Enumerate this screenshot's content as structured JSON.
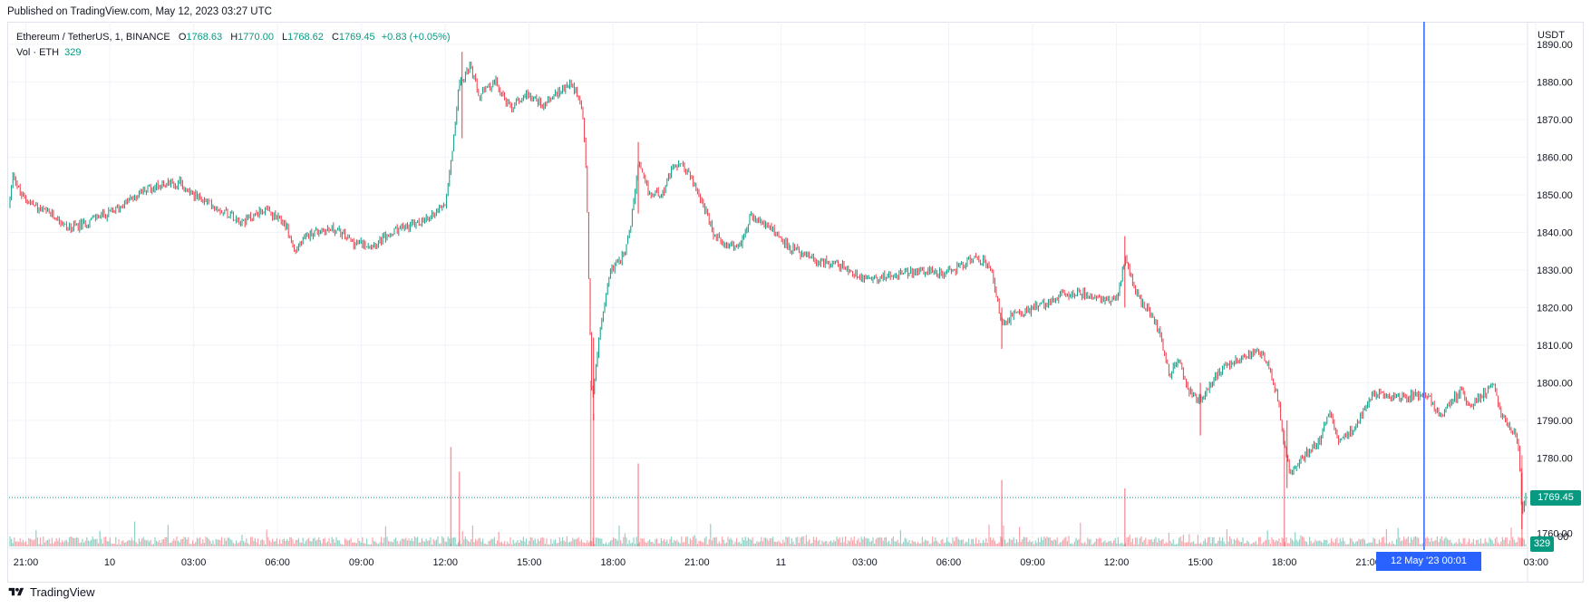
{
  "header": {
    "published": "Published on TradingView.com, May 12, 2023 03:27 UTC"
  },
  "legend": {
    "symbol": "Ethereum / TetherUS, 1, BINANCE",
    "open_key": "O",
    "open": "1768.63",
    "high_key": "H",
    "high": "1770.00",
    "low_key": "L",
    "low": "1768.62",
    "close_key": "C",
    "close": "1769.45",
    "change": "+0.83 (+0.05%)"
  },
  "volume_legend": {
    "label": "Vol · ETH",
    "value": "329"
  },
  "price_axis": {
    "currency": "USDT",
    "current_price_label": "1769.45",
    "volume_label": "329",
    "partial_bottom_label": "00"
  },
  "crosshair": {
    "date_label": "12 May '23   00:01"
  },
  "footer": {
    "brand": "TradingView"
  },
  "colors": {
    "up": "#089981",
    "down": "#f23645",
    "crosshair": "#2962ff",
    "grid": "#f0f3fa"
  },
  "chart_data": {
    "type": "candlestick",
    "title": "Ethereum / TetherUS, 1, BINANCE",
    "ylabel": "USDT",
    "ylim": [
      1756,
      1896
    ],
    "y_ticks": [
      1760,
      1770,
      1780,
      1790,
      1800,
      1810,
      1820,
      1830,
      1840,
      1850,
      1860,
      1870,
      1880,
      1890
    ],
    "x_ticks": [
      "21:00",
      "10",
      "03:00",
      "06:00",
      "09:00",
      "12:00",
      "15:00",
      "18:00",
      "21:00",
      "11",
      "03:00",
      "06:00",
      "09:00",
      "12:00",
      "15:00",
      "18:00",
      "21:00",
      "03:00"
    ],
    "x_range_hours": [
      -2.6,
      51.7
    ],
    "x_tick_hours": [
      -2,
      1,
      4,
      7,
      10,
      13,
      16,
      19,
      22,
      25,
      28,
      31,
      34,
      37,
      40,
      43,
      46,
      52
    ],
    "price_path": [
      [
        -2.6,
        1847
      ],
      [
        -2.45,
        1856
      ],
      [
        -2.2,
        1850
      ],
      [
        -1.5,
        1846
      ],
      [
        -0.9,
        1844
      ],
      [
        -0.5,
        1841
      ],
      [
        0.0,
        1842
      ],
      [
        0.5,
        1844
      ],
      [
        1.0,
        1845
      ],
      [
        1.6,
        1848
      ],
      [
        2.2,
        1851
      ],
      [
        2.9,
        1853
      ],
      [
        3.5,
        1853
      ],
      [
        4.2,
        1849
      ],
      [
        5.0,
        1846
      ],
      [
        5.8,
        1843
      ],
      [
        6.5,
        1846
      ],
      [
        7.3,
        1842
      ],
      [
        7.6,
        1835
      ],
      [
        8.2,
        1840
      ],
      [
        9.0,
        1841
      ],
      [
        9.8,
        1837
      ],
      [
        10.5,
        1837
      ],
      [
        11.4,
        1841
      ],
      [
        12.3,
        1843
      ],
      [
        13.0,
        1848
      ],
      [
        13.25,
        1862
      ],
      [
        13.5,
        1880
      ],
      [
        13.9,
        1884
      ],
      [
        14.2,
        1876
      ],
      [
        14.8,
        1880
      ],
      [
        15.3,
        1873
      ],
      [
        15.9,
        1877
      ],
      [
        16.5,
        1874
      ],
      [
        17.0,
        1877
      ],
      [
        17.5,
        1880
      ],
      [
        17.9,
        1873
      ],
      [
        18.05,
        1855
      ],
      [
        18.15,
        1820
      ],
      [
        18.25,
        1795
      ],
      [
        18.5,
        1812
      ],
      [
        18.9,
        1830
      ],
      [
        19.3,
        1833
      ],
      [
        19.6,
        1840
      ],
      [
        19.9,
        1858
      ],
      [
        20.3,
        1850
      ],
      [
        20.8,
        1851
      ],
      [
        21.2,
        1858
      ],
      [
        21.6,
        1857
      ],
      [
        22.2,
        1848
      ],
      [
        22.6,
        1839
      ],
      [
        23.0,
        1837
      ],
      [
        23.5,
        1836
      ],
      [
        23.9,
        1844
      ],
      [
        24.4,
        1842
      ],
      [
        24.8,
        1840
      ],
      [
        25.3,
        1836
      ],
      [
        25.8,
        1834
      ],
      [
        26.3,
        1832
      ],
      [
        26.8,
        1832
      ],
      [
        27.2,
        1831
      ],
      [
        27.6,
        1829
      ],
      [
        28.0,
        1828
      ],
      [
        28.5,
        1828
      ],
      [
        29.0,
        1829
      ],
      [
        29.5,
        1829
      ],
      [
        30.0,
        1830
      ],
      [
        30.6,
        1829
      ],
      [
        31.2,
        1830
      ],
      [
        31.8,
        1833
      ],
      [
        32.3,
        1832
      ],
      [
        32.6,
        1828
      ],
      [
        32.9,
        1815
      ],
      [
        33.3,
        1818
      ],
      [
        33.8,
        1819
      ],
      [
        34.4,
        1821
      ],
      [
        35.0,
        1823
      ],
      [
        35.6,
        1824
      ],
      [
        36.2,
        1823
      ],
      [
        36.6,
        1822
      ],
      [
        37.0,
        1822
      ],
      [
        37.3,
        1833
      ],
      [
        37.6,
        1826
      ],
      [
        37.9,
        1821
      ],
      [
        38.3,
        1818
      ],
      [
        38.6,
        1812
      ],
      [
        38.9,
        1802
      ],
      [
        39.2,
        1806
      ],
      [
        39.6,
        1798
      ],
      [
        40.0,
        1795
      ],
      [
        40.4,
        1800
      ],
      [
        40.8,
        1804
      ],
      [
        41.2,
        1806
      ],
      [
        41.6,
        1807
      ],
      [
        42.0,
        1808
      ],
      [
        42.4,
        1806
      ],
      [
        42.8,
        1795
      ],
      [
        43.0,
        1783
      ],
      [
        43.2,
        1776
      ],
      [
        43.5,
        1779
      ],
      [
        43.9,
        1782
      ],
      [
        44.3,
        1785
      ],
      [
        44.6,
        1792
      ],
      [
        45.0,
        1784
      ],
      [
        45.3,
        1786
      ],
      [
        45.7,
        1791
      ],
      [
        46.2,
        1797
      ],
      [
        46.8,
        1796
      ],
      [
        47.3,
        1796
      ],
      [
        47.8,
        1797
      ],
      [
        48.2,
        1796
      ],
      [
        48.6,
        1791
      ],
      [
        49.0,
        1795
      ],
      [
        49.3,
        1798
      ],
      [
        49.6,
        1794
      ],
      [
        50.1,
        1797
      ],
      [
        50.5,
        1799
      ],
      [
        50.8,
        1791
      ],
      [
        51.2,
        1787
      ],
      [
        51.4,
        1782
      ],
      [
        51.5,
        1765
      ],
      [
        51.6,
        1769
      ],
      [
        51.7,
        1769.45
      ]
    ],
    "spikes": [
      {
        "t": 18.3,
        "low": 1790,
        "high": 1812
      },
      {
        "t": 19.9,
        "low": 1845,
        "high": 1864
      },
      {
        "t": 13.6,
        "low": 1865,
        "high": 1888
      },
      {
        "t": 37.3,
        "low": 1820,
        "high": 1839
      },
      {
        "t": 43.1,
        "low": 1772,
        "high": 1790
      },
      {
        "t": 51.5,
        "low": 1761,
        "high": 1776
      },
      {
        "t": 32.9,
        "low": 1809,
        "high": 1820
      },
      {
        "t": 40.0,
        "low": 1786,
        "high": 1800
      }
    ],
    "volume_spikes": [
      {
        "t": 13.2,
        "v": 0.6
      },
      {
        "t": 18.2,
        "v": 1.0
      },
      {
        "t": 18.3,
        "v": 0.8
      },
      {
        "t": 19.9,
        "v": 0.5
      },
      {
        "t": 43.0,
        "v": 0.7
      },
      {
        "t": 51.5,
        "v": 0.55
      },
      {
        "t": 32.9,
        "v": 0.4
      },
      {
        "t": 37.3,
        "v": 0.35
      },
      {
        "t": 13.5,
        "v": 0.45
      }
    ],
    "crosshair_hour": 48.0,
    "last_price": 1769.45,
    "last_volume": 329
  }
}
